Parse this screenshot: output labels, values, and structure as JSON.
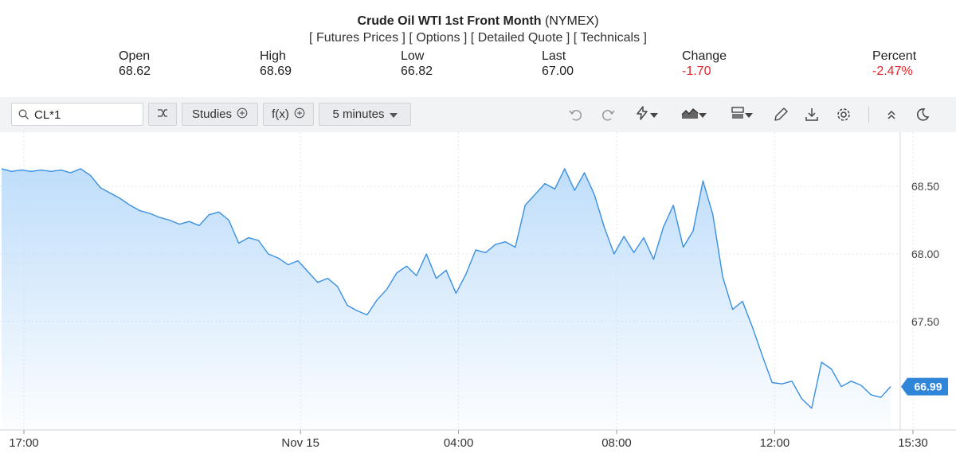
{
  "header": {
    "title_main": "Crude Oil WTI 1st Front Month",
    "title_exchange": "(NYMEX)",
    "links": [
      "Futures Prices",
      "Options",
      "Detailed Quote",
      "Technicals"
    ],
    "stats": {
      "open": {
        "label": "Open",
        "value": "68.62"
      },
      "high": {
        "label": "High",
        "value": "68.69"
      },
      "low": {
        "label": "Low",
        "value": "66.82"
      },
      "last": {
        "label": "Last",
        "value": "67.00"
      },
      "change": {
        "label": "Change",
        "value": "-1.70"
      },
      "percent": {
        "label": "Percent",
        "value": "-2.47%"
      }
    },
    "negative_color": "#e0262a"
  },
  "toolbar": {
    "symbol_value": "CL*1",
    "studies_label": "Studies",
    "fx_label": "f(x)",
    "interval_label": "5 minutes",
    "icons": [
      "search-icon",
      "compare-icon",
      "plus-circle-icon",
      "chevron-down-icon",
      "undo-icon",
      "redo-icon",
      "lightning-icon",
      "area-chart-icon",
      "layout-icon",
      "pencil-icon",
      "download-icon",
      "gear-icon",
      "collapse-icon",
      "moon-icon"
    ]
  },
  "chart_data": {
    "type": "area",
    "title": "",
    "xlabel": "",
    "ylabel": "",
    "x_ticks": [
      "17:00",
      "Nov 15",
      "04:00",
      "08:00",
      "12:00",
      "15:30"
    ],
    "y_ticks": [
      "67.50",
      "68.00",
      "68.50"
    ],
    "ylim": [
      66.7,
      68.9
    ],
    "grid": true,
    "last_value_label": "66.99",
    "line_color": "#3a8fe0",
    "fill_color": "#bcdcfa",
    "series": [
      {
        "x_hours": [
          0,
          0.25,
          0.5,
          0.75,
          1,
          1.25,
          1.5,
          1.75,
          2,
          2.25,
          2.5,
          2.75,
          3,
          3.25,
          3.5,
          3.75,
          4,
          4.25,
          4.5,
          4.75,
          5,
          5.25,
          5.5,
          5.75,
          6,
          6.25,
          6.5,
          6.75,
          7,
          7.25,
          7.5,
          7.75,
          8,
          8.25,
          8.5,
          8.75,
          9,
          9.25,
          9.5,
          9.75,
          10,
          10.25,
          10.5,
          10.75,
          11,
          11.25,
          11.5,
          11.75,
          12,
          12.25,
          12.5,
          12.75,
          13,
          13.25,
          13.5,
          13.75,
          14,
          14.25,
          14.5,
          14.75,
          15,
          15.25,
          15.5,
          15.75,
          16,
          16.25,
          16.5,
          16.75,
          17,
          17.25,
          17.5,
          17.75,
          18,
          18.25,
          18.5,
          18.75,
          19,
          19.25,
          19.5,
          19.75,
          20,
          20.25,
          20.5,
          20.75,
          21,
          21.25,
          21.5,
          21.75,
          22,
          22.25,
          22.5
        ],
        "values": [
          68.63,
          68.61,
          68.62,
          68.61,
          68.62,
          68.61,
          68.62,
          68.6,
          68.63,
          68.58,
          68.49,
          68.45,
          68.41,
          68.36,
          68.32,
          68.3,
          68.27,
          68.25,
          68.22,
          68.24,
          68.21,
          68.29,
          68.31,
          68.25,
          68.08,
          68.12,
          68.1,
          68.0,
          67.97,
          67.92,
          67.95,
          67.87,
          67.79,
          67.82,
          67.76,
          67.62,
          67.58,
          67.55,
          67.66,
          67.74,
          67.86,
          67.91,
          67.84,
          68.0,
          67.82,
          67.88,
          67.71,
          67.85,
          68.03,
          68.01,
          68.07,
          68.09,
          68.05,
          68.36,
          68.44,
          68.52,
          68.48,
          68.63,
          68.47,
          68.6,
          68.44,
          68.2,
          68.0,
          68.13,
          68.01,
          68.12,
          67.96,
          68.2,
          68.36,
          68.05,
          68.17,
          68.54,
          68.29,
          67.83,
          67.59,
          67.65,
          67.46,
          67.25,
          67.05,
          67.04,
          67.06,
          66.93,
          66.86,
          67.2,
          67.15,
          67.02,
          67.06,
          67.03,
          66.96,
          66.94,
          67.02
        ]
      }
    ]
  }
}
